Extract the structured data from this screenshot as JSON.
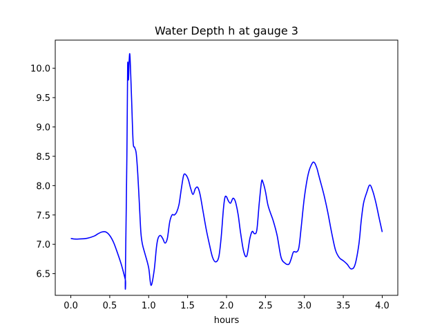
{
  "chart_data": {
    "type": "line",
    "title": "Water Depth h at gauge 3",
    "xlabel": "hours",
    "ylabel": "",
    "xlim": [
      -0.2,
      4.2
    ],
    "ylim": [
      6.13,
      10.48
    ],
    "xticks": [
      0.0,
      0.5,
      1.0,
      1.5,
      2.0,
      2.5,
      3.0,
      3.5,
      4.0
    ],
    "xtick_labels": [
      "0.0",
      "0.5",
      "1.0",
      "1.5",
      "2.0",
      "2.5",
      "3.0",
      "3.5",
      "4.0"
    ],
    "yticks": [
      6.5,
      7.0,
      7.5,
      8.0,
      8.5,
      9.0,
      9.5,
      10.0
    ],
    "ytick_labels": [
      "6.5",
      "7.0",
      "7.5",
      "8.0",
      "8.5",
      "9.0",
      "9.5",
      "10.0"
    ],
    "grid": false,
    "series": [
      {
        "color": "#0000ff",
        "x": [
          0.0,
          0.05,
          0.1,
          0.2,
          0.3,
          0.35,
          0.4,
          0.45,
          0.5,
          0.55,
          0.6,
          0.65,
          0.7,
          0.7,
          0.72,
          0.73,
          0.74,
          0.75,
          0.76,
          0.78,
          0.8,
          0.82,
          0.84,
          0.86,
          0.88,
          0.9,
          0.92,
          0.95,
          1.0,
          1.03,
          1.07,
          1.1,
          1.12,
          1.15,
          1.18,
          1.21,
          1.24,
          1.27,
          1.3,
          1.33,
          1.36,
          1.39,
          1.42,
          1.45,
          1.48,
          1.51,
          1.54,
          1.57,
          1.6,
          1.63,
          1.66,
          1.7,
          1.74,
          1.78,
          1.82,
          1.86,
          1.9,
          1.93,
          1.96,
          1.98,
          2.0,
          2.02,
          2.05,
          2.08,
          2.1,
          2.12,
          2.15,
          2.18,
          2.22,
          2.26,
          2.3,
          2.33,
          2.36,
          2.39,
          2.42,
          2.45,
          2.47,
          2.5,
          2.53,
          2.56,
          2.6,
          2.65,
          2.7,
          2.75,
          2.8,
          2.83,
          2.86,
          2.9,
          2.93,
          2.96,
          3.0,
          3.05,
          3.1,
          3.13,
          3.16,
          3.18,
          3.2,
          3.25,
          3.3,
          3.35,
          3.4,
          3.45,
          3.5,
          3.55,
          3.6,
          3.65,
          3.7,
          3.73,
          3.76,
          3.8,
          3.84,
          3.88,
          3.92,
          3.96,
          4.0
        ],
        "y": [
          7.1,
          7.09,
          7.09,
          7.1,
          7.14,
          7.18,
          7.21,
          7.21,
          7.15,
          7.03,
          6.85,
          6.65,
          6.4,
          6.4,
          8.5,
          10.05,
          9.8,
          10.15,
          10.2,
          9.5,
          8.75,
          8.65,
          8.55,
          8.2,
          7.7,
          7.2,
          7.0,
          6.85,
          6.6,
          6.3,
          6.55,
          6.95,
          7.1,
          7.15,
          7.1,
          7.02,
          7.1,
          7.38,
          7.5,
          7.5,
          7.55,
          7.68,
          7.95,
          8.18,
          8.18,
          8.1,
          7.95,
          7.85,
          7.95,
          7.97,
          7.85,
          7.55,
          7.25,
          7.0,
          6.78,
          6.7,
          6.78,
          7.1,
          7.6,
          7.8,
          7.81,
          7.75,
          7.7,
          7.78,
          7.77,
          7.7,
          7.5,
          7.2,
          6.88,
          6.8,
          7.1,
          7.22,
          7.18,
          7.25,
          7.7,
          8.07,
          8.05,
          7.9,
          7.68,
          7.55,
          7.4,
          7.15,
          6.78,
          6.68,
          6.66,
          6.75,
          6.87,
          6.87,
          6.95,
          7.3,
          7.8,
          8.2,
          8.38,
          8.39,
          8.3,
          8.2,
          8.1,
          7.85,
          7.55,
          7.2,
          6.9,
          6.77,
          6.72,
          6.66,
          6.58,
          6.65,
          7.0,
          7.4,
          7.7,
          7.88,
          8.01,
          7.9,
          7.7,
          7.45,
          7.21
        ]
      }
    ]
  }
}
